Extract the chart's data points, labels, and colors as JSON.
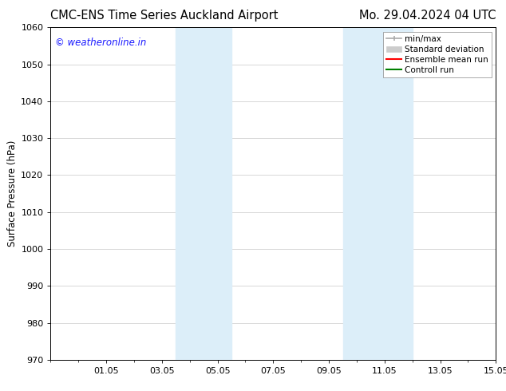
{
  "title_left": "CMC-ENS Time Series Auckland Airport",
  "title_right": "Mo. 29.04.2024 04 UTC",
  "ylabel": "Surface Pressure (hPa)",
  "ylim": [
    970,
    1060
  ],
  "yticks": [
    970,
    980,
    990,
    1000,
    1010,
    1020,
    1030,
    1040,
    1050,
    1060
  ],
  "xlim": [
    0,
    16
  ],
  "xtick_labels": [
    "01.05",
    "03.05",
    "05.05",
    "07.05",
    "09.05",
    "11.05",
    "13.05",
    "15.05"
  ],
  "xtick_positions": [
    2,
    4,
    6,
    8,
    10,
    12,
    14,
    16
  ],
  "minor_xtick_positions": [
    0,
    1,
    2,
    3,
    4,
    5,
    6,
    7,
    8,
    9,
    10,
    11,
    12,
    13,
    14,
    15,
    16
  ],
  "shaded_bands": [
    {
      "x_start": 4.5,
      "x_end": 6.5,
      "color": "#dceef9"
    },
    {
      "x_start": 10.5,
      "x_end": 13.0,
      "color": "#dceef9"
    }
  ],
  "watermark_text": "© weatheronline.in",
  "watermark_color": "#1a1aff",
  "background_color": "#ffffff",
  "plot_bg_color": "#ffffff",
  "grid_color": "#c8c8c8",
  "font_size_title": 10.5,
  "font_size_axis_label": 8.5,
  "font_size_tick": 8,
  "font_size_legend": 7.5,
  "font_size_watermark": 8.5,
  "legend_minmax_color": "#aaaaaa",
  "legend_std_color": "#cccccc",
  "legend_ens_color": "#ff0000",
  "legend_ctrl_color": "#008000"
}
